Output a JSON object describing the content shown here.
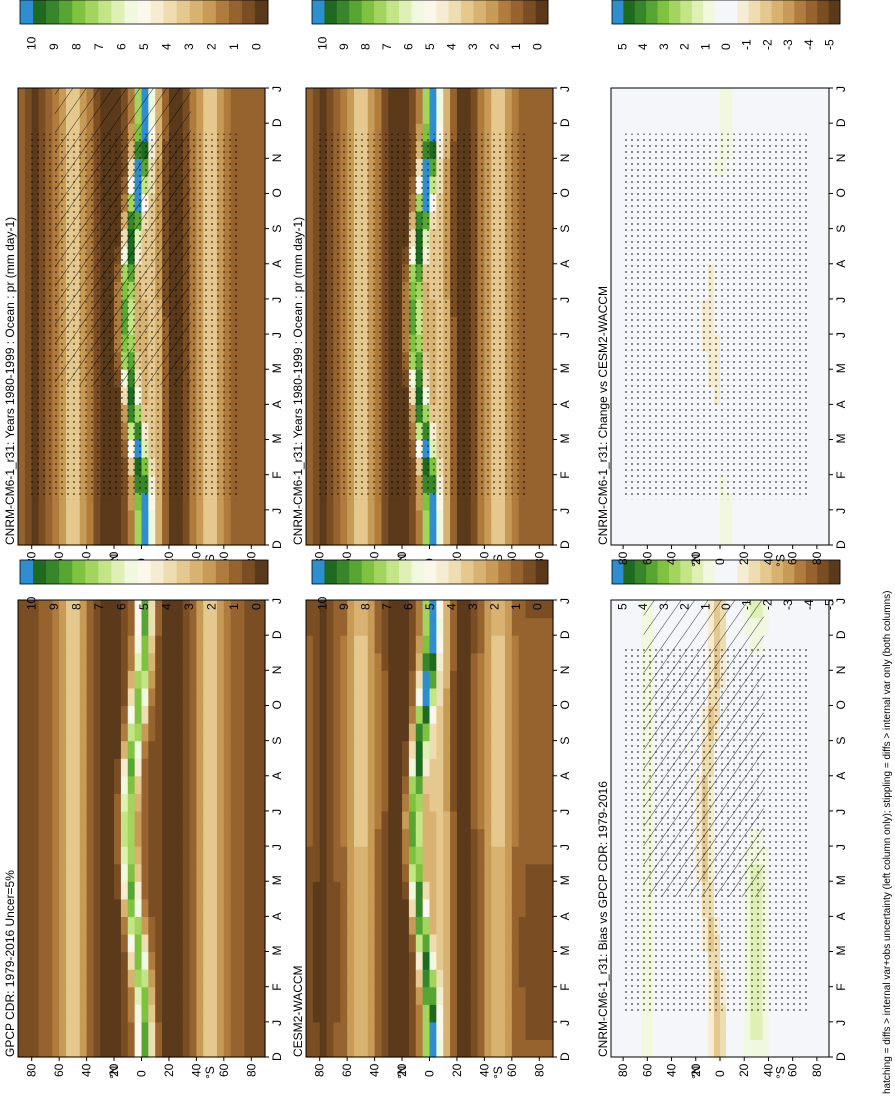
{
  "figure": {
    "footer": "hatching = diffs > internal var+obs uncertainty (left column only); stippling = diffs > internal var only (both columns)",
    "colors": {
      "absolute_scale": [
        "#5a3a1a",
        "#7a4e22",
        "#96632f",
        "#b07c3e",
        "#c79a55",
        "#d8b270",
        "#e5c88e",
        "#eeddb0",
        "#f5ecd2",
        "#fbf7ea",
        "#f1f8e0",
        "#dff0b4",
        "#c3e585",
        "#a2d45e",
        "#7fc23f",
        "#57a633",
        "#38862a",
        "#1f6a21",
        "#2d8fd0"
      ],
      "diff_scale": [
        "#5a3a1a",
        "#7a4e22",
        "#96632f",
        "#b07c3e",
        "#c79a55",
        "#d8b270",
        "#e5c88e",
        "#eeddb0",
        "#f5ecd2",
        "#f4f6fa",
        "#f4f6fa",
        "#f1f8e0",
        "#dff0b4",
        "#c3e585",
        "#a2d45e",
        "#7fc23f",
        "#57a633",
        "#38862a",
        "#1f6a21",
        "#2d8fd0"
      ]
    }
  },
  "chart_data": [
    {
      "type": "heatmap",
      "panel": "top-left",
      "title": "CNRM-CM6-1_r31: Years 1980-1999 : Ocean : pr (mm day-1)",
      "x_ticks": [
        "D",
        "J",
        "F",
        "M",
        "A",
        "M",
        "J",
        "J",
        "A",
        "S",
        "O",
        "N",
        "D",
        "J"
      ],
      "y_ticks": [
        "80",
        "60",
        "40",
        "20",
        "0",
        "20",
        "40",
        "60",
        "80"
      ],
      "y_unit_labels": [
        "°N",
        "°S"
      ],
      "colorbar_ticks": [
        "10",
        "9",
        "8",
        "7",
        "6",
        "5",
        "4",
        "3",
        "2",
        "1",
        "0"
      ],
      "ylim": [
        -90,
        90
      ],
      "field": "model",
      "hatching": true,
      "stippling": true
    },
    {
      "type": "heatmap",
      "panel": "top-right",
      "title": "CNRM-CM6-1_r31: Years 1980-1999 : Ocean : pr (mm day-1)",
      "x_ticks": [
        "D",
        "J",
        "F",
        "M",
        "A",
        "M",
        "J",
        "J",
        "A",
        "S",
        "O",
        "N",
        "D",
        "J"
      ],
      "y_ticks": [
        "80",
        "60",
        "40",
        "20",
        "0",
        "20",
        "40",
        "60",
        "80"
      ],
      "y_unit_labels": [
        "°N",
        "°S"
      ],
      "colorbar_ticks": [
        "10",
        "9",
        "8",
        "7",
        "6",
        "5",
        "4",
        "3",
        "2",
        "1",
        "0"
      ],
      "ylim": [
        -90,
        90
      ],
      "field": "model",
      "hatching": false,
      "stippling": true
    },
    {
      "type": "heatmap",
      "panel": "middle-left",
      "title": "GPCP CDR: 1979-2016 Uncer=5%",
      "x_ticks": [
        "D",
        "J",
        "F",
        "M",
        "A",
        "M",
        "J",
        "J",
        "A",
        "S",
        "O",
        "N",
        "D",
        "J"
      ],
      "y_ticks": [
        "80",
        "60",
        "40",
        "20",
        "0",
        "20",
        "40",
        "60",
        "80"
      ],
      "y_unit_labels": [
        "°N",
        "°S"
      ],
      "colorbar_ticks": [
        "10",
        "9",
        "8",
        "7",
        "6",
        "5",
        "4",
        "3",
        "2",
        "1",
        "0"
      ],
      "ylim": [
        -90,
        90
      ],
      "field": "obs",
      "hatching": false,
      "stippling": false
    },
    {
      "type": "heatmap",
      "panel": "middle-right",
      "title": "CESM2-WACCM",
      "x_ticks": [
        "D",
        "J",
        "F",
        "M",
        "A",
        "M",
        "J",
        "J",
        "A",
        "S",
        "O",
        "N",
        "D",
        "J"
      ],
      "y_ticks": [
        "80",
        "60",
        "40",
        "20",
        "0",
        "20",
        "40",
        "60",
        "80"
      ],
      "y_unit_labels": [
        "°N",
        "°S"
      ],
      "colorbar_ticks": [
        "10",
        "9",
        "8",
        "7",
        "6",
        "5",
        "4",
        "3",
        "2",
        "1",
        "0"
      ],
      "ylim": [
        -90,
        90
      ],
      "field": "ref",
      "hatching": false,
      "stippling": false
    },
    {
      "type": "heatmap",
      "panel": "bottom-left",
      "title": "CNRM-CM6-1_r31: Bias vs GPCP CDR: 1979-2016",
      "x_ticks": [
        "D",
        "J",
        "F",
        "M",
        "A",
        "M",
        "J",
        "J",
        "A",
        "S",
        "O",
        "N",
        "D",
        "J"
      ],
      "y_ticks": [
        "80",
        "60",
        "40",
        "20",
        "0",
        "20",
        "40",
        "60",
        "80"
      ],
      "y_unit_labels": [
        "°N",
        "°S"
      ],
      "colorbar_ticks": [
        "5",
        "4",
        "3",
        "2",
        "1",
        "0",
        "-1",
        "-2",
        "-3",
        "-4",
        "-5"
      ],
      "ylim": [
        -90,
        90
      ],
      "field": "bias",
      "hatching": true,
      "stippling": true
    },
    {
      "type": "heatmap",
      "panel": "bottom-right",
      "title": "CNRM-CM6-1_r31: Change vs CESM2-WACCM",
      "x_ticks": [
        "D",
        "J",
        "F",
        "M",
        "A",
        "M",
        "J",
        "J",
        "A",
        "S",
        "O",
        "N",
        "D",
        "J"
      ],
      "y_ticks": [
        "80",
        "60",
        "40",
        "20",
        "0",
        "20",
        "40",
        "60",
        "80"
      ],
      "y_unit_labels": [
        "°N",
        "°S"
      ],
      "colorbar_ticks": [
        "5",
        "4",
        "3",
        "2",
        "1",
        "0",
        "-1",
        "-2",
        "-3",
        "-4",
        "-5"
      ],
      "ylim": [
        -90,
        90
      ],
      "field": "change",
      "hatching": false,
      "stippling": true
    }
  ]
}
